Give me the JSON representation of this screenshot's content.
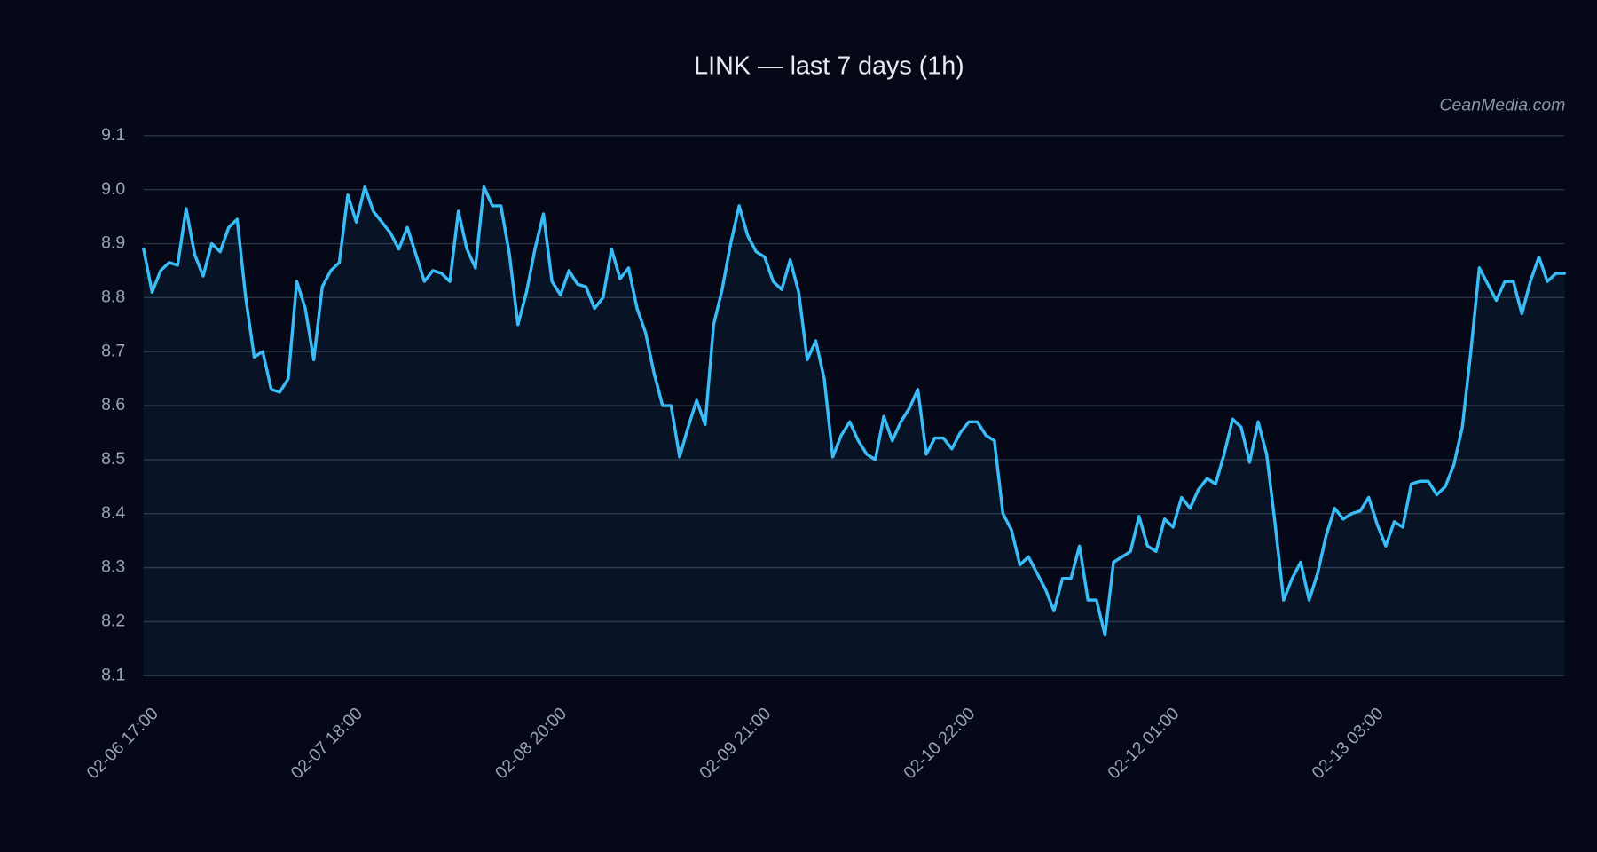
{
  "chart_data": {
    "type": "line",
    "title": "LINK — last 7 days (1h)",
    "watermark": "CeanMedia.com",
    "categories": [
      "02-06 17:00",
      null,
      null,
      null,
      null,
      null,
      null,
      null,
      null,
      null,
      null,
      null,
      null,
      null,
      null,
      null,
      null,
      null,
      null,
      null,
      null,
      null,
      null,
      null,
      "02-07 18:00",
      null,
      null,
      null,
      null,
      null,
      null,
      null,
      null,
      null,
      null,
      null,
      null,
      null,
      null,
      null,
      null,
      null,
      null,
      null,
      null,
      null,
      null,
      null,
      "02-08 20:00",
      null,
      null,
      null,
      null,
      null,
      null,
      null,
      null,
      null,
      null,
      null,
      null,
      null,
      null,
      null,
      null,
      null,
      null,
      null,
      null,
      null,
      null,
      null,
      "02-09 21:00",
      null,
      null,
      null,
      null,
      null,
      null,
      null,
      null,
      null,
      null,
      null,
      null,
      null,
      null,
      null,
      null,
      null,
      null,
      null,
      null,
      null,
      null,
      null,
      "02-10 22:00",
      null,
      null,
      null,
      null,
      null,
      null,
      null,
      null,
      null,
      null,
      null,
      null,
      null,
      null,
      null,
      null,
      null,
      null,
      null,
      null,
      null,
      null,
      null,
      "02-12 01:00",
      null,
      null,
      null,
      null,
      null,
      null,
      null,
      null,
      null,
      null,
      null,
      null,
      null,
      null,
      null,
      null,
      null,
      null,
      null,
      null,
      null,
      null,
      null,
      "02-13 03:00",
      null,
      null,
      null,
      null,
      null,
      null,
      null,
      null,
      null,
      null,
      null,
      null,
      null,
      null,
      null,
      null,
      null,
      null,
      null,
      null,
      null,
      null,
      null
    ],
    "values": [
      8.89,
      8.81,
      8.85,
      8.865,
      8.86,
      8.965,
      8.88,
      8.84,
      8.9,
      8.885,
      8.93,
      8.945,
      8.8,
      8.69,
      8.7,
      8.63,
      8.625,
      8.65,
      8.83,
      8.78,
      8.685,
      8.82,
      8.85,
      8.865,
      8.99,
      8.94,
      9.005,
      8.96,
      8.94,
      8.92,
      8.89,
      8.93,
      8.88,
      8.83,
      8.85,
      8.845,
      8.83,
      8.96,
      8.89,
      8.855,
      9.005,
      8.97,
      8.97,
      8.88,
      8.75,
      8.81,
      8.89,
      8.955,
      8.83,
      8.805,
      8.85,
      8.825,
      8.82,
      8.78,
      8.8,
      8.89,
      8.835,
      8.855,
      8.78,
      8.735,
      8.66,
      8.6,
      8.6,
      8.505,
      8.56,
      8.61,
      8.565,
      8.75,
      8.815,
      8.9,
      8.97,
      8.915,
      8.885,
      8.875,
      8.83,
      8.815,
      8.87,
      8.81,
      8.685,
      8.72,
      8.65,
      8.505,
      8.545,
      8.57,
      8.535,
      8.51,
      8.5,
      8.58,
      8.535,
      8.57,
      8.595,
      8.63,
      8.51,
      8.54,
      8.54,
      8.52,
      8.55,
      8.57,
      8.57,
      8.545,
      8.535,
      8.4,
      8.37,
      8.305,
      8.32,
      8.29,
      8.26,
      8.22,
      8.28,
      8.28,
      8.34,
      8.24,
      8.24,
      8.175,
      8.31,
      8.32,
      8.33,
      8.395,
      8.34,
      8.33,
      8.39,
      8.375,
      8.43,
      8.41,
      8.445,
      8.465,
      8.455,
      8.51,
      8.575,
      8.56,
      8.495,
      8.57,
      8.51,
      8.38,
      8.24,
      8.28,
      8.31,
      8.24,
      8.29,
      8.36,
      8.41,
      8.39,
      8.4,
      8.405,
      8.43,
      8.38,
      8.34,
      8.385,
      8.375,
      8.455,
      8.46,
      8.46,
      8.435,
      8.45,
      8.49,
      8.56,
      8.7,
      8.855,
      8.825,
      8.795,
      8.83,
      8.83,
      8.77,
      8.83,
      8.875,
      8.83,
      8.845,
      8.845
    ],
    "color": "#38bdf8",
    "ylim": [
      8.1,
      9.1
    ],
    "yticks": [
      8.1,
      8.2,
      8.3,
      8.4,
      8.5,
      8.6,
      8.7,
      8.8,
      8.9,
      {
        "value": 9,
        "label": "9.0"
      },
      9.1
    ],
    "grid": true
  }
}
